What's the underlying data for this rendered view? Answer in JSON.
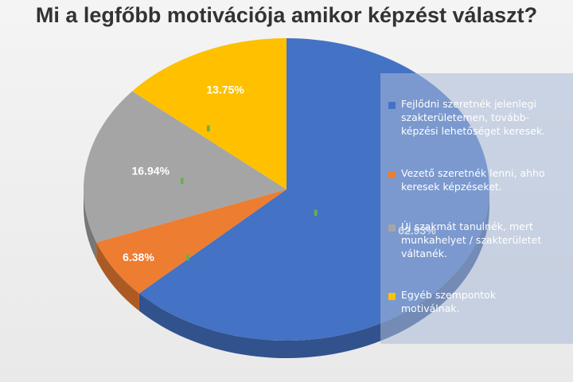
{
  "chart_data": {
    "type": "pie",
    "title": "Mi a legfőbb motivációja amikor képzést választ?",
    "slices": [
      {
        "label": "Fejlődni szeretnék jelenlegi\nszakterületemen, tovább-\nképzési lehetőséget keresek.",
        "value": 62.93,
        "value_label": "62.93%",
        "color": "#4472c4"
      },
      {
        "label": "Vezető szeretnék lenni, ahho\nkeresek képzéseket.",
        "value": 6.38,
        "value_label": "6.38%",
        "color": "#ed7d31"
      },
      {
        "label": "Új szakmát tanulnék, mert\nmunkahelyet / szakterületet\nváltanék.",
        "value": 16.94,
        "value_label": "16.94%",
        "color": "#a5a5a5"
      },
      {
        "label": "Egyéb szempontok\nmotiválnak.",
        "value": 13.75,
        "value_label": "13.75%",
        "color": "#ffc000"
      }
    ],
    "legend_position": "right"
  }
}
